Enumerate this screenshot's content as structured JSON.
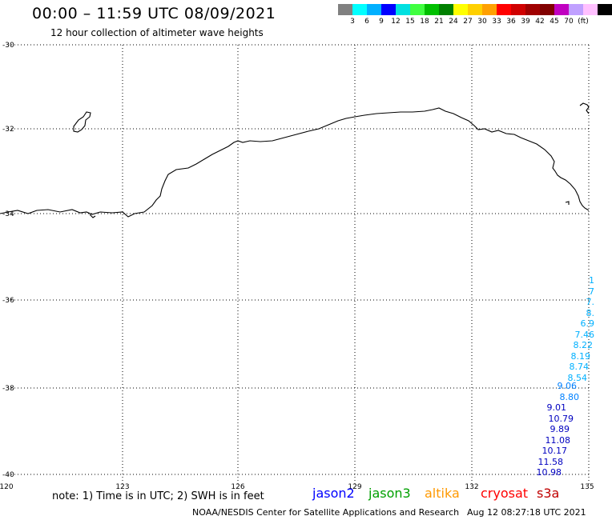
{
  "header": {
    "title": "00:00 – 11:59 UTC 08/09/2021",
    "subtitle": "12 hour collection of altimeter wave heights"
  },
  "color_scale": {
    "colors": [
      "#808080",
      "#00ffff",
      "#00b0ff",
      "#0000ff",
      "#00e0e0",
      "#40ff40",
      "#00c000",
      "#008000",
      "#ffff00",
      "#ffd000",
      "#ffa000",
      "#ff0000",
      "#d00000",
      "#a00000",
      "#800000",
      "#c000c0",
      "#c0a0ff",
      "#ffc0ff",
      "#000000"
    ],
    "labels": [
      "3",
      "6",
      "9",
      "12",
      "15",
      "18",
      "21",
      "24",
      "27",
      "30",
      "33",
      "36",
      "39",
      "42",
      "45",
      "70",
      "(ft)"
    ]
  },
  "map": {
    "lat_labels": [
      "-30",
      "-32",
      "-34",
      "-36",
      "-38",
      "-40"
    ],
    "lon_labels": [
      "120",
      "123",
      "126",
      "129",
      "132",
      "135"
    ]
  },
  "wave_heights": {
    "cyan": [
      "1",
      "7",
      "7.",
      "8.",
      "6.9",
      "7.46",
      "8.22",
      "8.19",
      "8.74",
      "8.54"
    ],
    "blue": [
      "9.06",
      "8.80",
      "9.01",
      "10.79",
      "9.89",
      "11.08",
      "10.17",
      "11.58",
      "10.98"
    ]
  },
  "footer": {
    "note": "note:  1)  Time is in UTC;  2)  SWH is in feet",
    "satellites": [
      {
        "name": "jason2",
        "color": "#0000ff"
      },
      {
        "name": "jason3",
        "color": "#00a000"
      },
      {
        "name": "altika",
        "color": "#ff9900"
      },
      {
        "name": "cryosat",
        "color": "#ff0000"
      },
      {
        "name": "s3a",
        "color": "#c00000"
      }
    ],
    "credit": "NOAA/NESDIS Center for Satellite Applications and Research",
    "timestamp": "Aug 12 08:27:18 UTC 2021"
  }
}
